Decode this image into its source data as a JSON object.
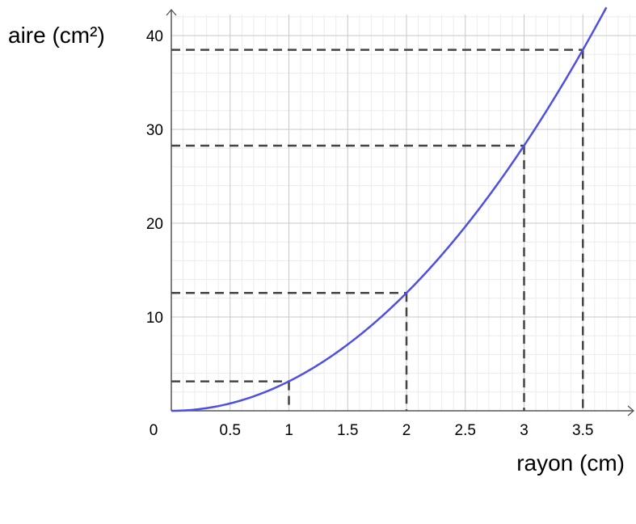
{
  "chart_data": {
    "type": "line",
    "xlabel": "rayon (cm)",
    "ylabel": "aire (cm²)",
    "xlim": [
      0,
      3.9
    ],
    "ylim": [
      0,
      40
    ],
    "origin_label": "0",
    "x_ticks": [
      {
        "value": 0.5,
        "label": "0.5"
      },
      {
        "value": 1,
        "label": "1"
      },
      {
        "value": 1.5,
        "label": "1.5"
      },
      {
        "value": 2,
        "label": "2"
      },
      {
        "value": 2.5,
        "label": "2.5"
      },
      {
        "value": 3,
        "label": "3"
      },
      {
        "value": 3.5,
        "label": "3.5"
      }
    ],
    "y_ticks": [
      {
        "value": 10,
        "label": "10"
      },
      {
        "value": 20,
        "label": "20"
      },
      {
        "value": 30,
        "label": "30"
      },
      {
        "value": 40,
        "label": "40"
      }
    ],
    "grid": "major and minor",
    "series": [
      {
        "function": "pi * x^2",
        "color": "#4f4fe6",
        "x": [
          0,
          0.25,
          0.5,
          0.75,
          1,
          1.25,
          1.5,
          1.75,
          2,
          2.25,
          2.5,
          2.75,
          3,
          3.25,
          3.5,
          3.72
        ],
        "y": [
          0,
          0.196,
          0.785,
          1.767,
          3.142,
          4.909,
          7.069,
          9.621,
          12.566,
          15.904,
          19.635,
          23.758,
          28.274,
          33.183,
          38.485,
          43.47
        ]
      }
    ],
    "guide_points": [
      {
        "x": 1,
        "y": 3.14
      },
      {
        "x": 2,
        "y": 12.57
      },
      {
        "x": 3,
        "y": 28.27
      },
      {
        "x": 3.5,
        "y": 38.48
      }
    ],
    "guide_color": "#444444"
  }
}
